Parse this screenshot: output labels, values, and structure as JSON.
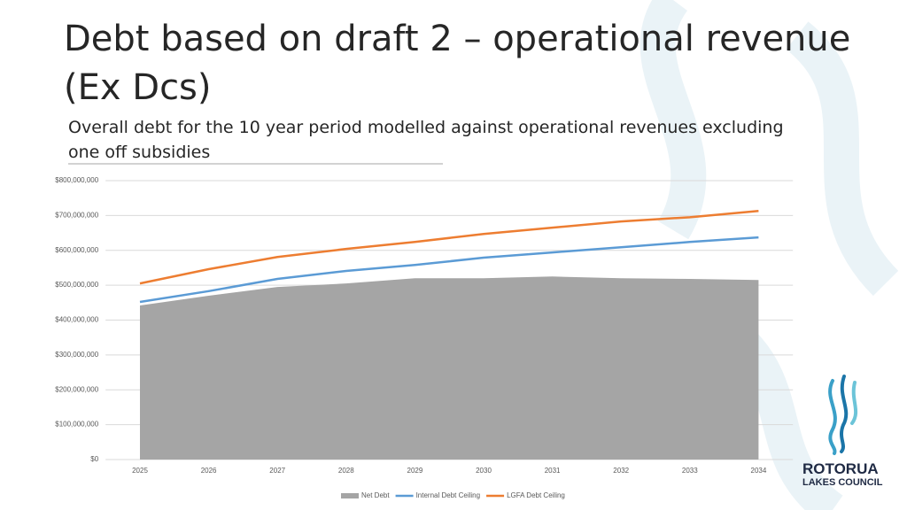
{
  "chart_data": {
    "type": "line",
    "title": [
      "Debt based on draft 2 – operational revenue",
      "(Ex Dcs)"
    ],
    "subtitle": [
      "Overall debt for the 10 year period modelled against operational revenues excluding",
      "one off subsidies"
    ],
    "categories": [
      "2025",
      "2026",
      "2027",
      "2028",
      "2029",
      "2030",
      "2031",
      "2032",
      "2033",
      "2034"
    ],
    "series": [
      {
        "name": "Net Debt",
        "type": "area",
        "color": "#a5a5a5",
        "values": [
          442000000,
          470000000,
          495000000,
          505000000,
          520000000,
          520000000,
          525000000,
          520000000,
          518000000,
          515000000
        ]
      },
      {
        "name": "Internal Debt Ceiling",
        "type": "line",
        "color": "#5b9bd5",
        "values": [
          452000000,
          483000000,
          518000000,
          541000000,
          558000000,
          579000000,
          594000000,
          609000000,
          624000000,
          637000000
        ]
      },
      {
        "name": "LGFA Debt Ceiling",
        "type": "line",
        "color": "#ed7d31",
        "values": [
          505000000,
          546000000,
          581000000,
          604000000,
          624000000,
          647000000,
          665000000,
          683000000,
          695000000,
          713000000
        ]
      }
    ],
    "ylim": [
      0,
      800000000
    ],
    "yticks": [
      {
        "value": 0,
        "label": "$0"
      },
      {
        "value": 100000000,
        "label": "$100,000,000"
      },
      {
        "value": 200000000,
        "label": "$200,000,000"
      },
      {
        "value": 300000000,
        "label": "$300,000,000"
      },
      {
        "value": 400000000,
        "label": "$400,000,000"
      },
      {
        "value": 500000000,
        "label": "$500,000,000"
      },
      {
        "value": 600000000,
        "label": "$600,000,000"
      },
      {
        "value": 700000000,
        "label": "$700,000,000"
      },
      {
        "value": 800000000,
        "label": "$800,000,000"
      }
    ],
    "grid": true,
    "legend": "bottom"
  },
  "logo": {
    "line1": "ROTORUA",
    "line2": "LAKES COUNCIL"
  }
}
